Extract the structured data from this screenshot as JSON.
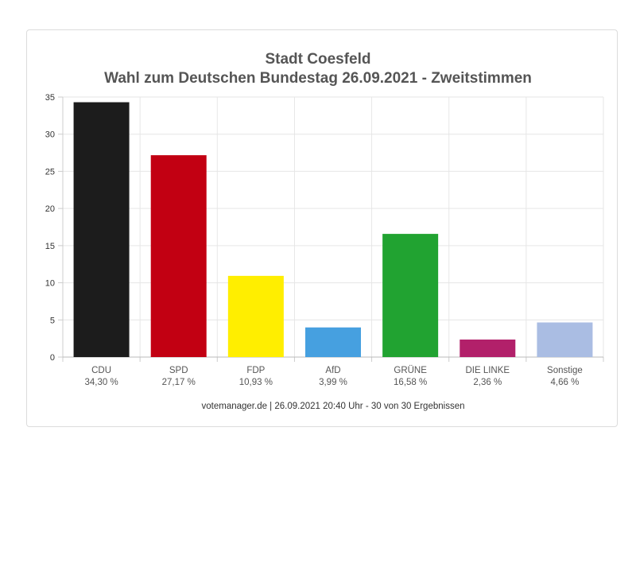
{
  "chart_data": {
    "type": "bar",
    "title": [
      "Stadt Coesfeld",
      "Wahl zum Deutschen Bundestag 26.09.2021  - Zweitstimmen"
    ],
    "categories": [
      "CDU",
      "SPD",
      "FDP",
      "AfD",
      "GRÜNE",
      "DIE LINKE",
      "Sonstige"
    ],
    "value_labels": [
      "34,30 %",
      "27,17 %",
      "10,93 %",
      "3,99 %",
      "16,58 %",
      "2,36 %",
      "4,66 %"
    ],
    "values": [
      34.3,
      27.17,
      10.93,
      3.99,
      16.58,
      2.36,
      4.66
    ],
    "colors": [
      "#1c1c1c",
      "#c20012",
      "#ffee00",
      "#46a0e0",
      "#21a331",
      "#b2206a",
      "#aabde3"
    ],
    "ylim": [
      0,
      35
    ],
    "yticks": [
      0,
      5,
      10,
      15,
      20,
      25,
      30,
      35
    ],
    "grid": true,
    "footer": "votemanager.de | 26.09.2021 20:40 Uhr - 30 von 30 Ergebnissen"
  }
}
